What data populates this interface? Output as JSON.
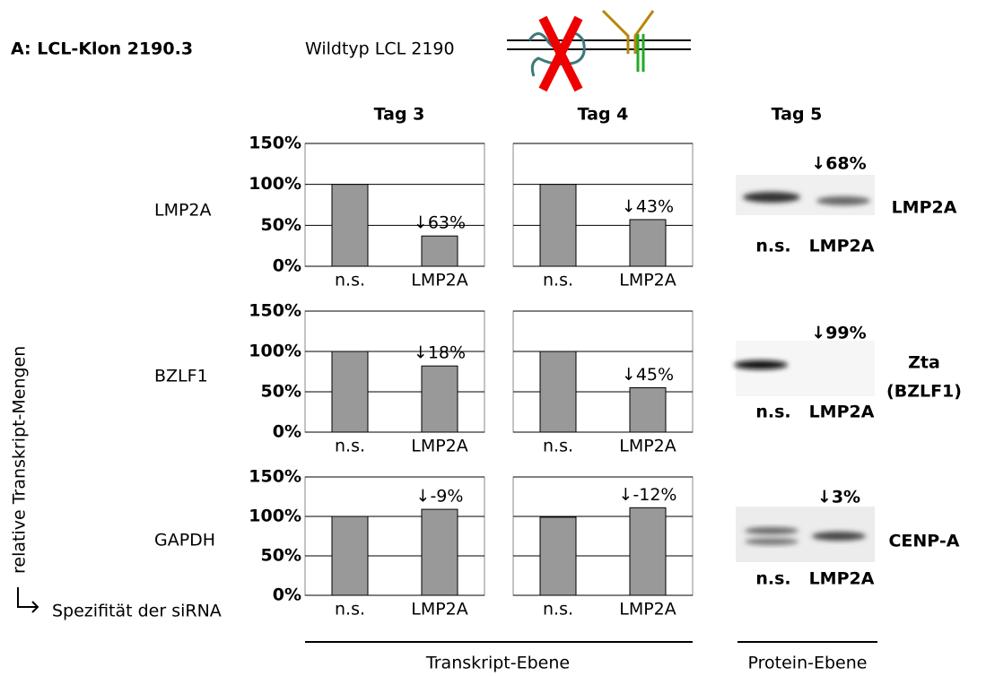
{
  "header": {
    "panel": "A: LCL-Klon 2190.3",
    "strain": "Wildtyp LCL 2190"
  },
  "columns": [
    "Tag 3",
    "Tag 4",
    "Tag 5"
  ],
  "rows": [
    "LMP2A",
    "BZLF1",
    "GAPDH"
  ],
  "axis_label": "relative Transkript-Mengen",
  "x_axis_label": "Spezifität der siRNA",
  "chart_data": [
    {
      "type": "bar",
      "categories": [
        "n.s.",
        "LMP2A"
      ],
      "values": [
        100,
        37
      ],
      "color": "#999999",
      "annotation": "↓63%",
      "ylim": [
        0,
        150
      ],
      "yticks": [
        {
          "value": 0,
          "label": "0%"
        },
        {
          "value": 50,
          "label": "50%"
        },
        {
          "value": 100,
          "label": "100%"
        },
        {
          "value": 150,
          "label": "150%"
        }
      ]
    },
    {
      "type": "bar",
      "categories": [
        "n.s.",
        "LMP2A"
      ],
      "values": [
        100,
        57
      ],
      "color": "#999999",
      "annotation": "↓43%",
      "ylim": [
        0,
        150
      ],
      "yticks": [
        0,
        50,
        100,
        150
      ]
    },
    {
      "type": "bar",
      "categories": [
        "n.s.",
        "LMP2A"
      ],
      "values": [
        100,
        82
      ],
      "color": "#999999",
      "annotation": "↓18%",
      "ylim": [
        0,
        150
      ],
      "yticks": [
        {
          "value": 0,
          "label": "0%"
        },
        {
          "value": 50,
          "label": "50%"
        },
        {
          "value": 100,
          "label": "100%"
        },
        {
          "value": 150,
          "label": "150%"
        }
      ]
    },
    {
      "type": "bar",
      "categories": [
        "n.s.",
        "LMP2A"
      ],
      "values": [
        100,
        55
      ],
      "color": "#999999",
      "annotation": "↓45%",
      "ylim": [
        0,
        150
      ],
      "yticks": [
        0,
        50,
        100,
        150
      ]
    },
    {
      "type": "bar",
      "categories": [
        "n.s.",
        "LMP2A"
      ],
      "values": [
        100,
        109
      ],
      "color": "#999999",
      "annotation": "↓-9%",
      "ylim": [
        0,
        150
      ],
      "yticks": [
        {
          "value": 0,
          "label": "0%"
        },
        {
          "value": 50,
          "label": "50%"
        },
        {
          "value": 100,
          "label": "100%"
        },
        {
          "value": 150,
          "label": "150%"
        }
      ]
    },
    {
      "type": "bar",
      "categories": [
        "n.s.",
        "LMP2A"
      ],
      "values": [
        99,
        111
      ],
      "color": "#999999",
      "annotation": "↓-12%",
      "ylim": [
        0,
        150
      ],
      "yticks": [
        0,
        50,
        100,
        150
      ]
    }
  ],
  "blots": [
    {
      "annotation": "↓68%",
      "lanes": [
        "n.s.",
        "LMP2A"
      ],
      "protein": [
        "LMP2A"
      ]
    },
    {
      "annotation": "↓99%",
      "lanes": [
        "n.s.",
        "LMP2A"
      ],
      "protein": [
        "Zta",
        "(BZLF1)"
      ]
    },
    {
      "annotation": "↓3%",
      "lanes": [
        "n.s.",
        "LMP2A"
      ],
      "protein": [
        "CENP-A"
      ]
    }
  ],
  "footer": {
    "transcript": "Transkript-Ebene",
    "protein": "Protein-Ebene"
  }
}
